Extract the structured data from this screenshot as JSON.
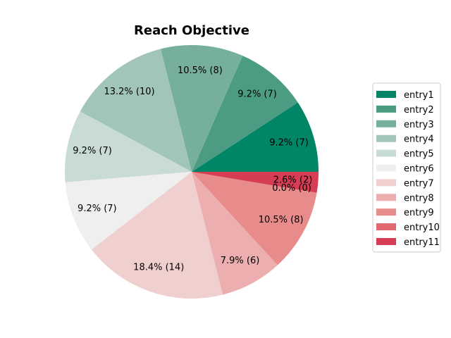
{
  "chart_data": {
    "type": "pie",
    "title": "Reach Objective",
    "legend_position": "right",
    "start_angle": 0,
    "direction": "counterclockwise",
    "slices": [
      {
        "name": "entry1",
        "value": 7,
        "label": "9.2%  (7)",
        "color": "#008566"
      },
      {
        "name": "entry2",
        "value": 7,
        "label": "9.2%  (7)",
        "color": "#4c9c84"
      },
      {
        "name": "entry3",
        "value": 8,
        "label": "10.5%  (8)",
        "color": "#76b09c"
      },
      {
        "name": "entry4",
        "value": 10,
        "label": "13.2%  (10)",
        "color": "#a1c6b8"
      },
      {
        "name": "entry5",
        "value": 7,
        "label": "9.2%  (7)",
        "color": "#c8dcd5"
      },
      {
        "name": "entry6",
        "value": 7,
        "label": "9.2%  (7)",
        "color": "#efefef"
      },
      {
        "name": "entry7",
        "value": 14,
        "label": "18.4%  (14)",
        "color": "#f0cfcf"
      },
      {
        "name": "entry8",
        "value": 6,
        "label": "7.9%  (6)",
        "color": "#ecaeae"
      },
      {
        "name": "entry9",
        "value": 8,
        "label": "10.5%  (8)",
        "color": "#e88b8b"
      },
      {
        "name": "entry10",
        "value": 0,
        "label": "0.0%  (0)",
        "color": "#e06670"
      },
      {
        "name": "entry11",
        "value": 2,
        "label": "2.6%  (2)",
        "color": "#d63d55"
      }
    ]
  }
}
